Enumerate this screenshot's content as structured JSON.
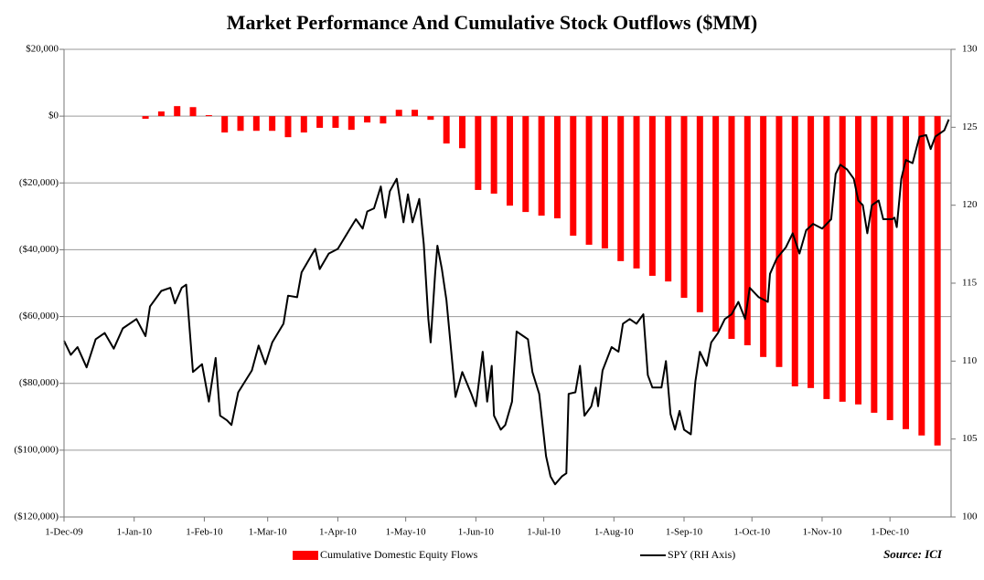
{
  "chart_data": {
    "type": "bar_line",
    "title": "Market Performance And Cumulative Stock Outflows ($MM)",
    "source": "Source: ICI",
    "xlim": [
      "2009-12-01",
      "2010-12-28"
    ],
    "xticks": [
      {
        "value": "2009-12-01",
        "label": "1-Dec-09"
      },
      {
        "value": "2010-01-01",
        "label": "1-Jan-10"
      },
      {
        "value": "2010-02-01",
        "label": "1-Feb-10"
      },
      {
        "value": "2010-03-01",
        "label": "1-Mar-10"
      },
      {
        "value": "2010-04-01",
        "label": "1-Apr-10"
      },
      {
        "value": "2010-05-01",
        "label": "1-May-10"
      },
      {
        "value": "2010-06-01",
        "label": "1-Jun-10"
      },
      {
        "value": "2010-07-01",
        "label": "1-Jul-10"
      },
      {
        "value": "2010-08-01",
        "label": "1-Aug-10"
      },
      {
        "value": "2010-09-01",
        "label": "1-Sep-10"
      },
      {
        "value": "2010-10-01",
        "label": "1-Oct-10"
      },
      {
        "value": "2010-11-01",
        "label": "1-Nov-10"
      },
      {
        "value": "2010-12-01",
        "label": "1-Dec-10"
      }
    ],
    "ylim": [
      -120000,
      20000
    ],
    "yticks": [
      {
        "value": 20000,
        "label": "$20,000"
      },
      {
        "value": 0,
        "label": "$0"
      },
      {
        "value": -20000,
        "label": "($20,000)"
      },
      {
        "value": -40000,
        "label": "($40,000)"
      },
      {
        "value": -60000,
        "label": "($60,000)"
      },
      {
        "value": -80000,
        "label": "($80,000)"
      },
      {
        "value": -100000,
        "label": "($100,000)"
      },
      {
        "value": -120000,
        "label": "($120,000)"
      }
    ],
    "negative_tick_color": "#e00000",
    "y2lim": [
      100,
      130
    ],
    "y2ticks": [
      100,
      105,
      110,
      115,
      120,
      125,
      130
    ],
    "grid": true,
    "series": [
      {
        "name": "Cumulative Domestic Equity Flows",
        "type": "bar",
        "axis": "y",
        "color": "#ff0000",
        "x": [
          "2010-01-06",
          "2010-01-13",
          "2010-01-20",
          "2010-01-27",
          "2010-02-03",
          "2010-02-10",
          "2010-02-17",
          "2010-02-24",
          "2010-03-03",
          "2010-03-10",
          "2010-03-17",
          "2010-03-24",
          "2010-03-31",
          "2010-04-07",
          "2010-04-14",
          "2010-04-21",
          "2010-04-28",
          "2010-05-05",
          "2010-05-12",
          "2010-05-19",
          "2010-05-26",
          "2010-06-02",
          "2010-06-09",
          "2010-06-16",
          "2010-06-23",
          "2010-06-30",
          "2010-07-07",
          "2010-07-14",
          "2010-07-21",
          "2010-07-28",
          "2010-08-04",
          "2010-08-11",
          "2010-08-18",
          "2010-08-25",
          "2010-09-01",
          "2010-09-08",
          "2010-09-15",
          "2010-09-22",
          "2010-09-29",
          "2010-10-06",
          "2010-10-13",
          "2010-10-20",
          "2010-10-27",
          "2010-11-03",
          "2010-11-10",
          "2010-11-17",
          "2010-11-24",
          "2010-12-01",
          "2010-12-08",
          "2010-12-15",
          "2010-12-22"
        ],
        "values": [
          -800,
          1400,
          3000,
          2700,
          300,
          -4900,
          -4400,
          -4400,
          -4400,
          -6300,
          -4900,
          -3500,
          -3500,
          -4100,
          -1900,
          -2200,
          1900,
          1900,
          -1100,
          -8200,
          -9600,
          -22100,
          -23200,
          -26800,
          -28700,
          -29800,
          -30600,
          -35800,
          -38500,
          -39600,
          -43400,
          -45600,
          -47800,
          -49500,
          -54400,
          -58700,
          -64500,
          -66700,
          -68600,
          -72100,
          -75100,
          -80900,
          -81400,
          -84700,
          -85500,
          -86300,
          -88800,
          -91000,
          -93700,
          -95600,
          -98600
        ]
      },
      {
        "name": "SPY (RH Axis)",
        "type": "line",
        "axis": "y2",
        "color": "#000000",
        "x": [
          "2009-12-01",
          "2009-12-04",
          "2009-12-07",
          "2009-12-11",
          "2009-12-15",
          "2009-12-19",
          "2009-12-23",
          "2009-12-27",
          "2010-01-02",
          "2010-01-06",
          "2010-01-08",
          "2010-01-13",
          "2010-01-17",
          "2010-01-19",
          "2010-01-22",
          "2010-01-24",
          "2010-01-27",
          "2010-01-31",
          "2010-02-03",
          "2010-02-06",
          "2010-02-08",
          "2010-02-11",
          "2010-02-13",
          "2010-02-16",
          "2010-02-22",
          "2010-02-25",
          "2010-02-28",
          "2010-03-03",
          "2010-03-08",
          "2010-03-10",
          "2010-03-14",
          "2010-03-16",
          "2010-03-22",
          "2010-03-24",
          "2010-03-28",
          "2010-04-01",
          "2010-04-06",
          "2010-04-09",
          "2010-04-12",
          "2010-04-14",
          "2010-04-17",
          "2010-04-20",
          "2010-04-22",
          "2010-04-24",
          "2010-04-27",
          "2010-04-30",
          "2010-05-02",
          "2010-05-04",
          "2010-05-07",
          "2010-05-09",
          "2010-05-11",
          "2010-05-12",
          "2010-05-14",
          "2010-05-15",
          "2010-05-17",
          "2010-05-19",
          "2010-05-23",
          "2010-05-26",
          "2010-05-30",
          "2010-06-01",
          "2010-06-04",
          "2010-06-06",
          "2010-06-08",
          "2010-06-09",
          "2010-06-12",
          "2010-06-14",
          "2010-06-17",
          "2010-06-19",
          "2010-06-22",
          "2010-06-24",
          "2010-06-26",
          "2010-06-29",
          "2010-07-02",
          "2010-07-04",
          "2010-07-06",
          "2010-07-09",
          "2010-07-11",
          "2010-07-12",
          "2010-07-15",
          "2010-07-17",
          "2010-07-19",
          "2010-07-22",
          "2010-07-24",
          "2010-07-25",
          "2010-07-27",
          "2010-07-31",
          "2010-08-03",
          "2010-08-05",
          "2010-08-08",
          "2010-08-11",
          "2010-08-14",
          "2010-08-16",
          "2010-08-18",
          "2010-08-22",
          "2010-08-24",
          "2010-08-26",
          "2010-08-28",
          "2010-08-30",
          "2010-09-01",
          "2010-09-04",
          "2010-09-06",
          "2010-09-08",
          "2010-09-11",
          "2010-09-13",
          "2010-09-16",
          "2010-09-19",
          "2010-09-22",
          "2010-09-25",
          "2010-09-28",
          "2010-09-30",
          "2010-10-04",
          "2010-10-08",
          "2010-10-09",
          "2010-10-12",
          "2010-10-16",
          "2010-10-19",
          "2010-10-22",
          "2010-10-25",
          "2010-10-28",
          "2010-11-01",
          "2010-11-05",
          "2010-11-07",
          "2010-11-09",
          "2010-11-12",
          "2010-11-15",
          "2010-11-17",
          "2010-11-19",
          "2010-11-21",
          "2010-11-23",
          "2010-11-26",
          "2010-11-28",
          "2010-12-02",
          "2010-12-03",
          "2010-12-04",
          "2010-12-06",
          "2010-12-08",
          "2010-12-11",
          "2010-12-14",
          "2010-12-17",
          "2010-12-19",
          "2010-12-21",
          "2010-12-25",
          "2010-12-27"
        ],
        "values": [
          111.3,
          110.4,
          110.9,
          109.6,
          111.4,
          111.8,
          110.8,
          112.1,
          112.7,
          111.6,
          113.5,
          114.5,
          114.7,
          113.7,
          114.7,
          114.9,
          109.3,
          109.8,
          107.4,
          110.2,
          106.5,
          106.2,
          105.9,
          108.0,
          109.4,
          111.0,
          109.8,
          111.2,
          112.4,
          114.2,
          114.1,
          115.7,
          117.2,
          115.9,
          116.9,
          117.2,
          118.4,
          119.1,
          118.5,
          119.6,
          119.8,
          121.2,
          119.2,
          120.9,
          121.7,
          118.9,
          120.7,
          118.9,
          120.4,
          117.5,
          112.7,
          111.2,
          115.6,
          117.4,
          115.9,
          113.9,
          107.7,
          109.3,
          107.9,
          107.1,
          110.6,
          107.4,
          109.7,
          106.5,
          105.6,
          105.9,
          107.4,
          111.9,
          111.6,
          111.4,
          109.3,
          107.9,
          103.9,
          102.6,
          102.1,
          102.6,
          102.8,
          107.9,
          108.0,
          109.7,
          106.5,
          107.1,
          108.3,
          107.1,
          109.4,
          110.9,
          110.6,
          112.4,
          112.7,
          112.4,
          113.0,
          109.1,
          108.3,
          108.3,
          110.0,
          106.6,
          105.6,
          106.8,
          105.6,
          105.3,
          108.7,
          110.6,
          109.7,
          111.2,
          111.8,
          112.7,
          113.0,
          113.8,
          112.7,
          114.7,
          114.1,
          113.8,
          115.6,
          116.6,
          117.3,
          118.2,
          116.9,
          118.4,
          118.8,
          118.5,
          119.1,
          122.0,
          122.6,
          122.3,
          121.7,
          120.3,
          120.0,
          118.2,
          120.0,
          120.3,
          119.1,
          119.1,
          119.2,
          118.6,
          121.7,
          122.9,
          122.7,
          124.4,
          124.5,
          123.6,
          124.4,
          124.8,
          125.5
        ]
      }
    ]
  }
}
